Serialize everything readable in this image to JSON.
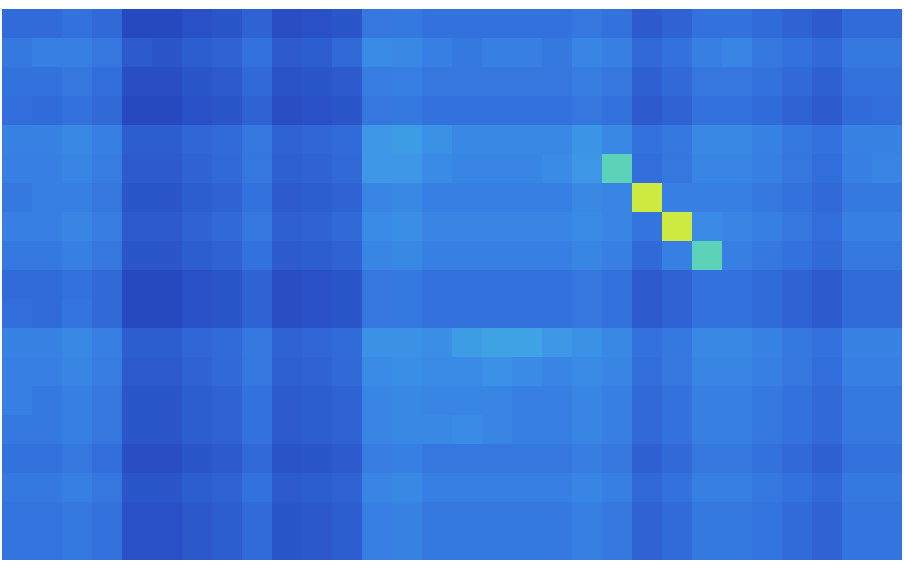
{
  "chart_data": {
    "type": "heatmap",
    "tick_labels": false,
    "zlim": [
      0,
      1
    ],
    "cells": [
      [
        0.23,
        0.23,
        0.25,
        0.22,
        0.1,
        0.1,
        0.13,
        0.15,
        0.2,
        0.12,
        0.13,
        0.15,
        0.27,
        0.28,
        0.25,
        0.25,
        0.25,
        0.25,
        0.25,
        0.27,
        0.25,
        0.17,
        0.2,
        0.25,
        0.25,
        0.23,
        0.2,
        0.17,
        0.23,
        0.23
      ],
      [
        0.28,
        0.3,
        0.3,
        0.27,
        0.17,
        0.15,
        0.18,
        0.2,
        0.25,
        0.17,
        0.18,
        0.22,
        0.34,
        0.33,
        0.3,
        0.28,
        0.3,
        0.3,
        0.28,
        0.32,
        0.3,
        0.22,
        0.25,
        0.3,
        0.32,
        0.28,
        0.25,
        0.22,
        0.28,
        0.28
      ],
      [
        0.25,
        0.25,
        0.27,
        0.24,
        0.12,
        0.12,
        0.15,
        0.17,
        0.22,
        0.14,
        0.15,
        0.17,
        0.29,
        0.3,
        0.27,
        0.27,
        0.27,
        0.27,
        0.27,
        0.29,
        0.27,
        0.19,
        0.22,
        0.27,
        0.27,
        0.25,
        0.22,
        0.19,
        0.25,
        0.25
      ],
      [
        0.24,
        0.23,
        0.25,
        0.22,
        0.1,
        0.1,
        0.13,
        0.15,
        0.2,
        0.12,
        0.13,
        0.15,
        0.27,
        0.28,
        0.25,
        0.25,
        0.25,
        0.25,
        0.25,
        0.27,
        0.25,
        0.17,
        0.2,
        0.25,
        0.25,
        0.23,
        0.2,
        0.17,
        0.23,
        0.24
      ],
      [
        0.31,
        0.31,
        0.33,
        0.3,
        0.18,
        0.18,
        0.21,
        0.23,
        0.28,
        0.2,
        0.21,
        0.23,
        0.38,
        0.4,
        0.36,
        0.33,
        0.33,
        0.33,
        0.33,
        0.37,
        0.33,
        0.25,
        0.28,
        0.33,
        0.33,
        0.31,
        0.28,
        0.25,
        0.31,
        0.31
      ],
      [
        0.3,
        0.3,
        0.32,
        0.29,
        0.17,
        0.17,
        0.2,
        0.22,
        0.27,
        0.19,
        0.2,
        0.22,
        0.38,
        0.38,
        0.34,
        0.32,
        0.32,
        0.32,
        0.34,
        0.38,
        0.6,
        0.24,
        0.27,
        0.32,
        0.32,
        0.3,
        0.27,
        0.24,
        0.3,
        0.32
      ],
      [
        0.28,
        0.3,
        0.3,
        0.27,
        0.15,
        0.15,
        0.18,
        0.2,
        0.25,
        0.17,
        0.18,
        0.2,
        0.32,
        0.33,
        0.3,
        0.3,
        0.3,
        0.3,
        0.3,
        0.33,
        0.32,
        0.85,
        0.3,
        0.3,
        0.3,
        0.28,
        0.25,
        0.22,
        0.28,
        0.28
      ],
      [
        0.3,
        0.3,
        0.32,
        0.29,
        0.17,
        0.17,
        0.2,
        0.22,
        0.27,
        0.19,
        0.2,
        0.22,
        0.34,
        0.35,
        0.32,
        0.32,
        0.32,
        0.32,
        0.32,
        0.34,
        0.32,
        0.26,
        0.85,
        0.34,
        0.32,
        0.3,
        0.27,
        0.24,
        0.3,
        0.3
      ],
      [
        0.28,
        0.28,
        0.3,
        0.27,
        0.15,
        0.15,
        0.18,
        0.2,
        0.25,
        0.17,
        0.18,
        0.2,
        0.32,
        0.33,
        0.3,
        0.3,
        0.3,
        0.3,
        0.3,
        0.32,
        0.3,
        0.22,
        0.3,
        0.6,
        0.3,
        0.28,
        0.25,
        0.22,
        0.28,
        0.28
      ],
      [
        0.23,
        0.23,
        0.25,
        0.22,
        0.1,
        0.1,
        0.13,
        0.15,
        0.2,
        0.12,
        0.13,
        0.15,
        0.27,
        0.28,
        0.25,
        0.25,
        0.25,
        0.25,
        0.25,
        0.27,
        0.25,
        0.17,
        0.2,
        0.25,
        0.25,
        0.23,
        0.2,
        0.17,
        0.23,
        0.23
      ],
      [
        0.24,
        0.23,
        0.26,
        0.22,
        0.1,
        0.1,
        0.13,
        0.15,
        0.2,
        0.12,
        0.13,
        0.15,
        0.27,
        0.28,
        0.25,
        0.25,
        0.25,
        0.25,
        0.25,
        0.27,
        0.25,
        0.17,
        0.2,
        0.25,
        0.25,
        0.23,
        0.2,
        0.17,
        0.23,
        0.23
      ],
      [
        0.31,
        0.31,
        0.33,
        0.3,
        0.18,
        0.18,
        0.21,
        0.23,
        0.28,
        0.2,
        0.21,
        0.23,
        0.36,
        0.36,
        0.35,
        0.4,
        0.42,
        0.42,
        0.38,
        0.36,
        0.33,
        0.25,
        0.28,
        0.33,
        0.33,
        0.31,
        0.28,
        0.25,
        0.31,
        0.31
      ],
      [
        0.3,
        0.3,
        0.32,
        0.29,
        0.17,
        0.17,
        0.2,
        0.22,
        0.27,
        0.19,
        0.2,
        0.22,
        0.34,
        0.35,
        0.34,
        0.34,
        0.36,
        0.34,
        0.32,
        0.34,
        0.32,
        0.24,
        0.27,
        0.32,
        0.32,
        0.3,
        0.27,
        0.24,
        0.3,
        0.3
      ],
      [
        0.3,
        0.28,
        0.3,
        0.27,
        0.15,
        0.15,
        0.18,
        0.2,
        0.25,
        0.17,
        0.18,
        0.2,
        0.32,
        0.33,
        0.32,
        0.32,
        0.32,
        0.3,
        0.3,
        0.32,
        0.3,
        0.22,
        0.25,
        0.3,
        0.3,
        0.28,
        0.25,
        0.22,
        0.28,
        0.28
      ],
      [
        0.28,
        0.28,
        0.3,
        0.27,
        0.15,
        0.15,
        0.18,
        0.2,
        0.25,
        0.17,
        0.18,
        0.2,
        0.32,
        0.33,
        0.33,
        0.34,
        0.32,
        0.3,
        0.3,
        0.32,
        0.3,
        0.22,
        0.25,
        0.3,
        0.3,
        0.28,
        0.25,
        0.22,
        0.28,
        0.28
      ],
      [
        0.25,
        0.25,
        0.27,
        0.24,
        0.12,
        0.12,
        0.15,
        0.17,
        0.22,
        0.14,
        0.15,
        0.17,
        0.29,
        0.3,
        0.27,
        0.27,
        0.27,
        0.27,
        0.27,
        0.29,
        0.27,
        0.19,
        0.22,
        0.27,
        0.27,
        0.25,
        0.22,
        0.19,
        0.25,
        0.25
      ],
      [
        0.28,
        0.28,
        0.3,
        0.27,
        0.15,
        0.15,
        0.18,
        0.2,
        0.25,
        0.17,
        0.18,
        0.2,
        0.32,
        0.33,
        0.3,
        0.3,
        0.3,
        0.3,
        0.3,
        0.32,
        0.3,
        0.22,
        0.25,
        0.3,
        0.3,
        0.28,
        0.25,
        0.22,
        0.28,
        0.28
      ],
      [
        0.26,
        0.26,
        0.28,
        0.25,
        0.13,
        0.13,
        0.16,
        0.18,
        0.23,
        0.15,
        0.16,
        0.18,
        0.3,
        0.31,
        0.28,
        0.28,
        0.28,
        0.28,
        0.28,
        0.3,
        0.28,
        0.2,
        0.23,
        0.28,
        0.28,
        0.26,
        0.23,
        0.2,
        0.26,
        0.26
      ],
      [
        0.26,
        0.26,
        0.28,
        0.25,
        0.13,
        0.13,
        0.16,
        0.18,
        0.23,
        0.15,
        0.16,
        0.18,
        0.3,
        0.31,
        0.28,
        0.28,
        0.28,
        0.28,
        0.28,
        0.3,
        0.28,
        0.2,
        0.23,
        0.28,
        0.28,
        0.26,
        0.23,
        0.2,
        0.26,
        0.26
      ]
    ]
  }
}
